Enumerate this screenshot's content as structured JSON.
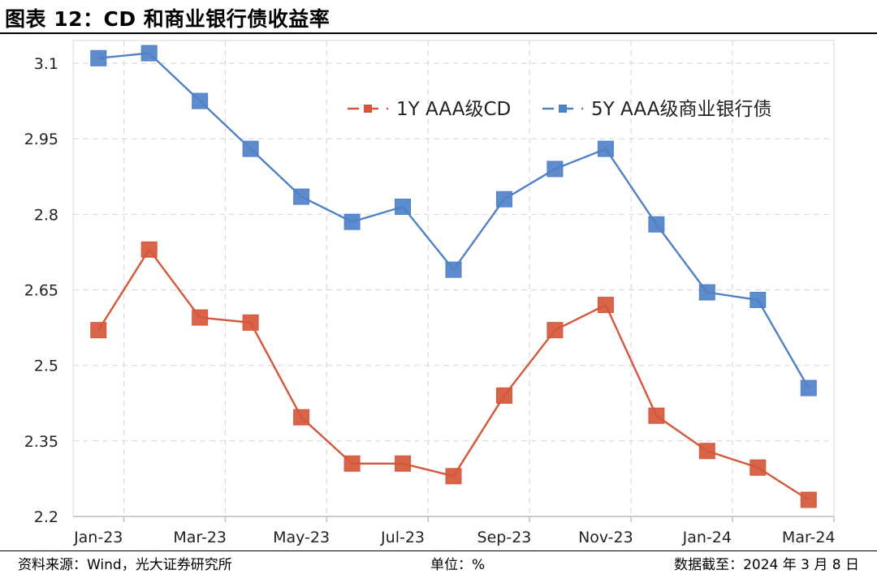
{
  "title": "图表 12：CD 和商业银行债收益率",
  "footer": {
    "source": "资料来源：Wind，光大证券研究所",
    "unit": "单位：%",
    "date": "数据截至：2024 年 3 月 8 日"
  },
  "chart_data": {
    "type": "line",
    "x": [
      "Jan-23",
      "Feb-23",
      "Mar-23",
      "Apr-23",
      "May-23",
      "Jun-23",
      "Jul-23",
      "Aug-23",
      "Sep-23",
      "Oct-23",
      "Nov-23",
      "Dec-23",
      "Jan-24",
      "Feb-24",
      "Mar-24"
    ],
    "x_tick_labels": [
      "Jan-23",
      "Mar-23",
      "May-23",
      "Jul-23",
      "Sep-23",
      "Nov-23",
      "Jan-24",
      "Mar-24"
    ],
    "y_ticks": [
      2.2,
      2.35,
      2.5,
      2.65,
      2.8,
      2.95,
      3.1
    ],
    "y_tick_labels": [
      "2.2",
      "2.35",
      "2.5",
      "2.65",
      "2.8",
      "2.95",
      "3.1"
    ],
    "ylim": [
      2.2,
      3.1
    ],
    "grid": true,
    "legend_position": "top-right",
    "series": [
      {
        "name": "1Y AAA级CD",
        "color": "#d5573b",
        "values": [
          2.57,
          2.73,
          2.595,
          2.585,
          2.397,
          2.305,
          2.305,
          2.28,
          2.44,
          2.57,
          2.62,
          2.4,
          2.33,
          2.297,
          2.233
        ]
      },
      {
        "name": "5Y AAA级商业银行债",
        "color": "#4f81c7",
        "values": [
          3.11,
          3.12,
          3.025,
          2.93,
          2.835,
          2.785,
          2.815,
          2.69,
          2.83,
          2.89,
          2.93,
          2.78,
          2.645,
          2.63,
          2.455
        ]
      }
    ]
  }
}
